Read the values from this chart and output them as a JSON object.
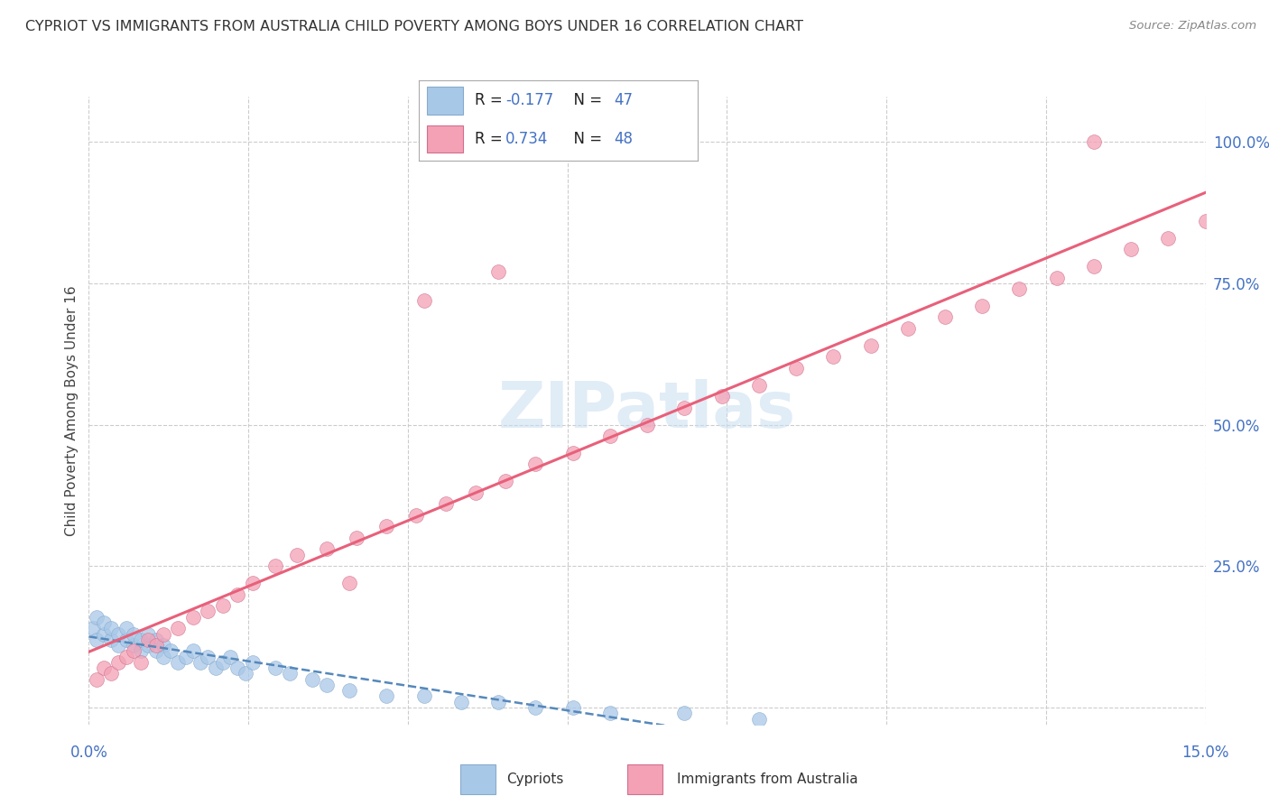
{
  "title": "CYPRIOT VS IMMIGRANTS FROM AUSTRALIA CHILD POVERTY AMONG BOYS UNDER 16 CORRELATION CHART",
  "source": "Source: ZipAtlas.com",
  "ylabel": "Child Poverty Among Boys Under 16",
  "legend_label1": "Cypriots",
  "legend_label2": "Immigrants from Australia",
  "r1": -0.177,
  "n1": 47,
  "r2": 0.734,
  "n2": 48,
  "color1": "#a8c8e8",
  "color2": "#f4a0b5",
  "line_color1": "#5588bb",
  "line_color2": "#e8607a",
  "background_color": "#ffffff",
  "xmin": 0.0,
  "xmax": 0.15,
  "ymin": -0.03,
  "ymax": 1.08,
  "cypriot_x": [
    0.0005,
    0.001,
    0.001,
    0.002,
    0.002,
    0.003,
    0.003,
    0.004,
    0.004,
    0.005,
    0.005,
    0.006,
    0.006,
    0.007,
    0.007,
    0.008,
    0.008,
    0.009,
    0.009,
    0.01,
    0.01,
    0.011,
    0.012,
    0.013,
    0.014,
    0.015,
    0.016,
    0.017,
    0.018,
    0.019,
    0.02,
    0.021,
    0.022,
    0.025,
    0.027,
    0.03,
    0.032,
    0.035,
    0.04,
    0.045,
    0.05,
    0.055,
    0.06,
    0.065,
    0.07,
    0.08,
    0.09
  ],
  "cypriot_y": [
    0.14,
    0.12,
    0.16,
    0.13,
    0.15,
    0.12,
    0.14,
    0.11,
    0.13,
    0.12,
    0.14,
    0.11,
    0.13,
    0.1,
    0.12,
    0.11,
    0.13,
    0.1,
    0.12,
    0.11,
    0.09,
    0.1,
    0.08,
    0.09,
    0.1,
    0.08,
    0.09,
    0.07,
    0.08,
    0.09,
    0.07,
    0.06,
    0.08,
    0.07,
    0.06,
    0.05,
    0.04,
    0.03,
    0.02,
    0.02,
    0.01,
    0.01,
    0.0,
    0.0,
    -0.01,
    -0.01,
    -0.02
  ],
  "australia_x": [
    0.001,
    0.002,
    0.003,
    0.004,
    0.005,
    0.006,
    0.007,
    0.008,
    0.009,
    0.01,
    0.012,
    0.014,
    0.016,
    0.018,
    0.02,
    0.022,
    0.025,
    0.028,
    0.032,
    0.036,
    0.04,
    0.044,
    0.048,
    0.052,
    0.056,
    0.06,
    0.065,
    0.07,
    0.075,
    0.08,
    0.085,
    0.09,
    0.095,
    0.1,
    0.105,
    0.11,
    0.115,
    0.12,
    0.125,
    0.13,
    0.135,
    0.14,
    0.145,
    0.15,
    0.035,
    0.045,
    0.055,
    0.135
  ],
  "australia_y": [
    0.05,
    0.07,
    0.06,
    0.08,
    0.09,
    0.1,
    0.08,
    0.12,
    0.11,
    0.13,
    0.14,
    0.16,
    0.17,
    0.18,
    0.2,
    0.22,
    0.25,
    0.27,
    0.28,
    0.3,
    0.32,
    0.34,
    0.36,
    0.38,
    0.4,
    0.43,
    0.45,
    0.48,
    0.5,
    0.53,
    0.55,
    0.57,
    0.6,
    0.62,
    0.64,
    0.67,
    0.69,
    0.71,
    0.74,
    0.76,
    0.78,
    0.81,
    0.83,
    0.86,
    0.22,
    0.72,
    0.77,
    1.0
  ]
}
